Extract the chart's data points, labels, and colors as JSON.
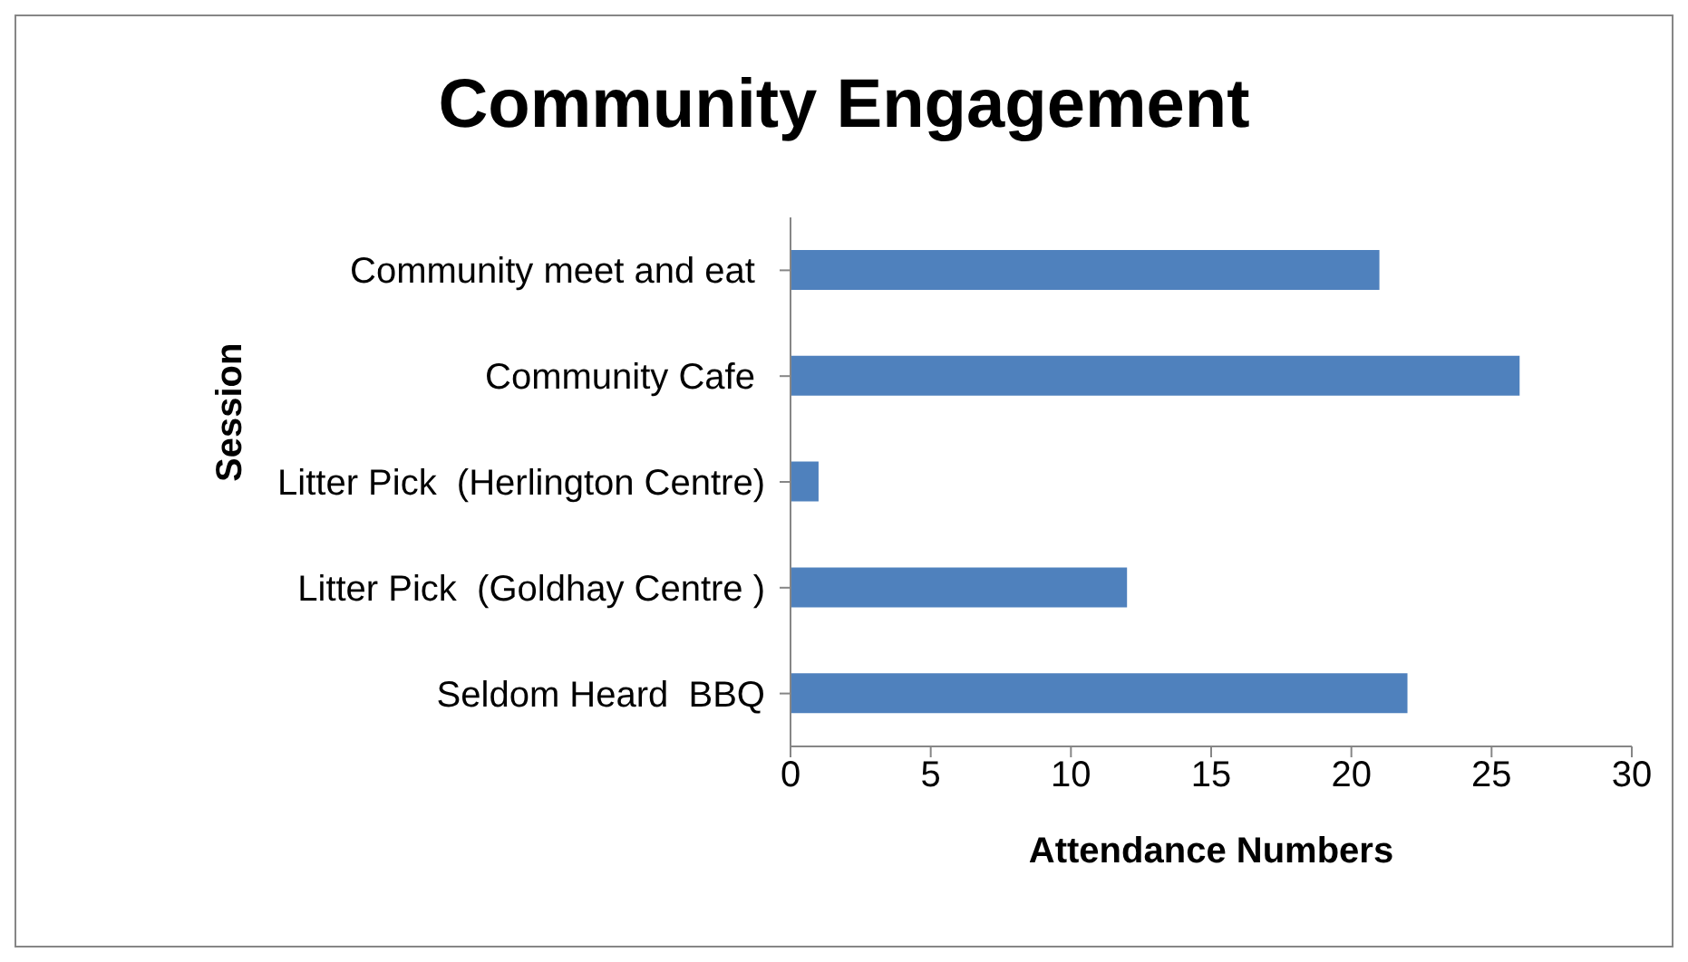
{
  "chart_data": {
    "type": "bar",
    "orientation": "horizontal",
    "title": "Community Engagement",
    "xlabel": "Attendance Numbers",
    "ylabel": "Session",
    "categories": [
      "Community meet and eat ",
      "Community Cafe ",
      "Litter Pick  (Herlington Centre)",
      "Litter Pick  (Goldhay Centre )",
      "Seldom Heard  BBQ"
    ],
    "values": [
      21,
      26,
      1,
      12,
      22
    ],
    "color": "#4f81bd",
    "xlim": [
      0,
      30
    ],
    "xticks": [
      0,
      5,
      10,
      15,
      20,
      25,
      30
    ],
    "grid": false,
    "legend": false
  }
}
